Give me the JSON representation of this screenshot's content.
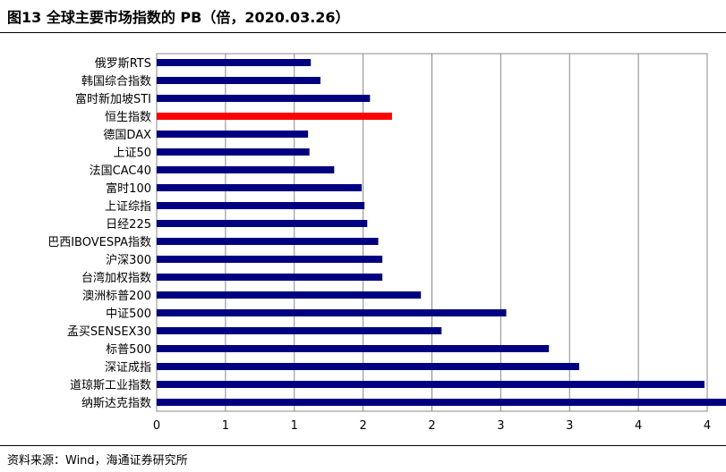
{
  "title": "图13 全球主要市场指数的 PB（倍，2020.03.26）",
  "source": "资料来源：Wind，海通证券研究所",
  "colors": {
    "bar": "#000080",
    "highlight": "#ff0000",
    "grid": "#888888"
  },
  "chart_data": {
    "type": "bar",
    "orientation": "horizontal",
    "categories": [
      "俄罗斯RTS",
      "韩国综合指数",
      "富时新加坡STI",
      "恒生指数",
      "德国DAX",
      "上证50",
      "法国CAC40",
      "富时100",
      "上证综指",
      "日经225",
      "巴西IBOVESPA指数",
      "沪深300",
      "台湾加权指数",
      "澳洲标普200",
      "中证500",
      "孟买SENSEX30",
      "标普500",
      "深证成指",
      "道琼斯工业指数",
      "纳斯达克指数"
    ],
    "values": [
      1.12,
      1.19,
      1.55,
      1.71,
      1.1,
      1.11,
      1.29,
      1.49,
      1.51,
      1.53,
      1.61,
      1.64,
      1.64,
      1.92,
      2.54,
      2.07,
      2.85,
      3.07,
      3.98,
      4.15
    ],
    "highlight_category": "恒生指数",
    "xlim": [
      0,
      4
    ],
    "xticks": [
      "0",
      "1",
      "1",
      "2",
      "2",
      "3",
      "3",
      "4",
      "4"
    ],
    "grid": "vertical"
  }
}
